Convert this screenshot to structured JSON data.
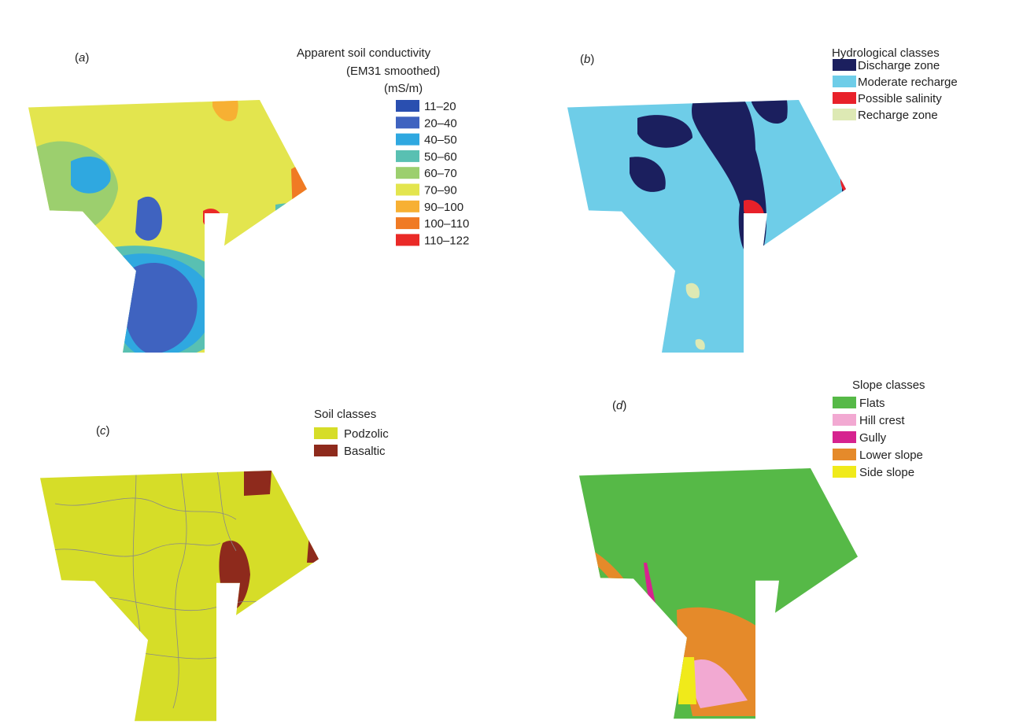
{
  "panels": {
    "a": {
      "label_open": "(",
      "label_letter": "a",
      "label_close": ")",
      "legend_title_1": "Apparent soil conductivity",
      "legend_title_2": "(EM31 smoothed)",
      "legend_title_3": "(mS/m)",
      "legend": [
        {
          "label": "11–20",
          "color": "#2a4fb0"
        },
        {
          "label": "20–40",
          "color": "#3f63c0"
        },
        {
          "label": "40–50",
          "color": "#2fa8e0"
        },
        {
          "label": "50–60",
          "color": "#59c0b2"
        },
        {
          "label": "60–70",
          "color": "#9ccf6e"
        },
        {
          "label": "70–90",
          "color": "#e3e54e"
        },
        {
          "label": "90–100",
          "color": "#f7b033"
        },
        {
          "label": "100–110",
          "color": "#f07a24"
        },
        {
          "label": "110–122",
          "color": "#ea2a27"
        }
      ]
    },
    "b": {
      "label_open": "(",
      "label_letter": "b",
      "label_close": ")",
      "legend_title": "Hydrological classes",
      "legend": [
        {
          "label": "Discharge zone",
          "color": "#1b1f5e"
        },
        {
          "label": "Moderate recharge",
          "color": "#6ecde8"
        },
        {
          "label": "Possible salinity",
          "color": "#e8212a"
        },
        {
          "label": "Recharge zone",
          "color": "#dde9b4"
        }
      ]
    },
    "c": {
      "label_open": "(",
      "label_letter": "c",
      "label_close": ")",
      "legend_title": "Soil classes",
      "legend": [
        {
          "label": "Podzolic",
          "color": "#d6dd28"
        },
        {
          "label": "Basaltic",
          "color": "#8e2a1c"
        }
      ]
    },
    "d": {
      "label_open": "(",
      "label_letter": "d",
      "label_close": ")",
      "legend_title": "Slope classes",
      "legend": [
        {
          "label": "Flats",
          "color": "#56b947"
        },
        {
          "label": "Hill crest",
          "color": "#f2a9d2"
        },
        {
          "label": "Gully",
          "color": "#d6238f"
        },
        {
          "label": "Lower slope",
          "color": "#e58a2a"
        },
        {
          "label": "Side slope",
          "color": "#f0ea1a"
        }
      ]
    }
  }
}
